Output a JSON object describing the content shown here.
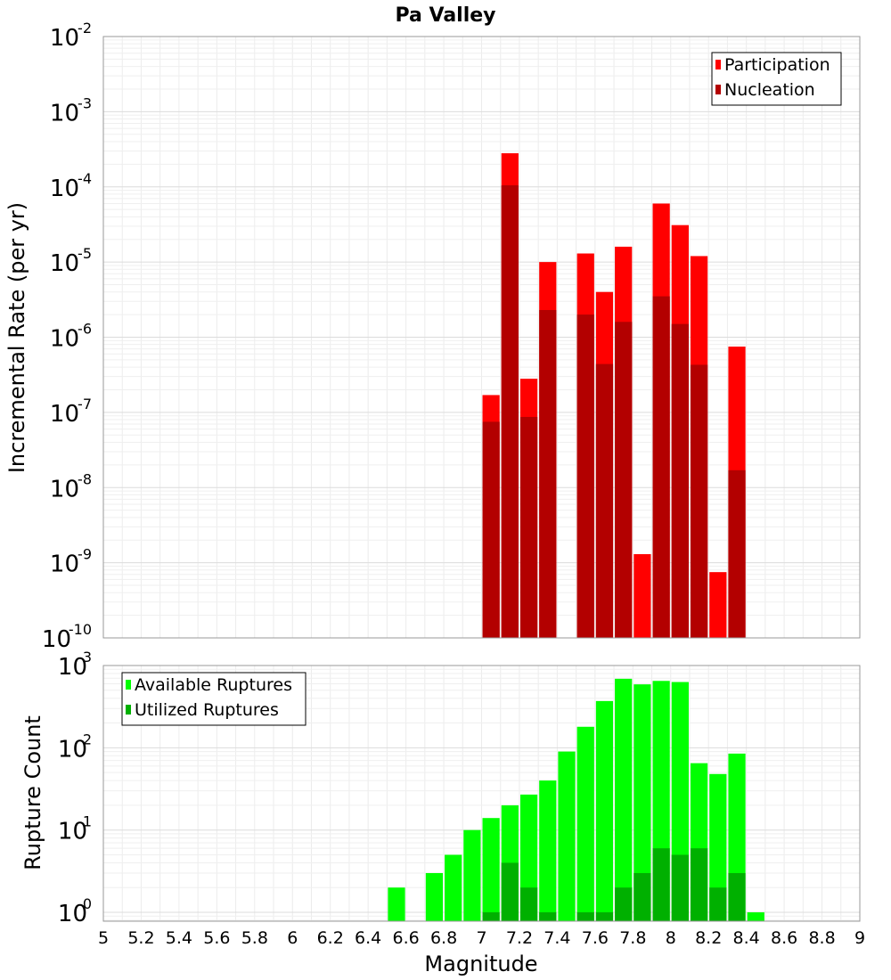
{
  "title": "Pa Valley",
  "xlabel": "Magnitude",
  "x_ticks": [
    "5",
    "5.2",
    "5.4",
    "5.6",
    "5.8",
    "6",
    "6.2",
    "6.4",
    "6.6",
    "6.8",
    "7",
    "7.2",
    "7.4",
    "7.6",
    "7.8",
    "8",
    "8.2",
    "8.4",
    "8.6",
    "8.8",
    "9"
  ],
  "chart_data": [
    {
      "type": "bar",
      "ylabel": "Incremental Rate (per yr)",
      "yscale": "log",
      "xlim": [
        5,
        9
      ],
      "ylim": [
        1e-10,
        0.01
      ],
      "y_ticks": [
        {
          "base": "10",
          "exp": "-10"
        },
        {
          "base": "10",
          "exp": "-9"
        },
        {
          "base": "10",
          "exp": "-8"
        },
        {
          "base": "10",
          "exp": "-7"
        },
        {
          "base": "10",
          "exp": "-6"
        },
        {
          "base": "10",
          "exp": "-5"
        },
        {
          "base": "10",
          "exp": "-4"
        },
        {
          "base": "10",
          "exp": "-3"
        },
        {
          "base": "10",
          "exp": "-2"
        }
      ],
      "legend_position": "top-right",
      "grid": true,
      "x": [
        7.05,
        7.15,
        7.25,
        7.35,
        7.55,
        7.65,
        7.75,
        7.85,
        7.95,
        8.05,
        8.15,
        8.25,
        8.35
      ],
      "series": [
        {
          "name": "Participation",
          "color": "#ff0000",
          "values": [
            1.7e-07,
            0.00028,
            2.8e-07,
            1e-05,
            1.3e-05,
            4e-06,
            1.6e-05,
            1.3e-09,
            6e-05,
            3.1e-05,
            1.2e-05,
            7.5e-10,
            7.5e-07
          ]
        },
        {
          "name": "Nucleation",
          "color": "#b30000",
          "values": [
            7.5e-08,
            0.000105,
            8.7e-08,
            2.3e-06,
            2e-06,
            4.4e-07,
            1.6e-06,
            null,
            3.5e-06,
            1.5e-06,
            4.3e-07,
            null,
            1.7e-08
          ]
        }
      ]
    },
    {
      "type": "bar",
      "ylabel": "Rupture Count",
      "yscale": "log",
      "xlim": [
        5,
        9
      ],
      "ylim": [
        0.78,
        1000
      ],
      "y_ticks": [
        {
          "base": "10",
          "exp": "0"
        },
        {
          "base": "10",
          "exp": "1"
        },
        {
          "base": "10",
          "exp": "2"
        },
        {
          "base": "10",
          "exp": "3"
        }
      ],
      "legend_position": "top-left",
      "grid": true,
      "x": [
        6.55,
        6.75,
        6.85,
        6.95,
        7.05,
        7.15,
        7.25,
        7.35,
        7.45,
        7.55,
        7.65,
        7.75,
        7.85,
        7.95,
        8.05,
        8.15,
        8.25,
        8.35,
        8.45
      ],
      "series": [
        {
          "name": "Available Ruptures",
          "color": "#00ff00",
          "values": [
            2,
            3,
            5,
            10,
            14,
            20,
            27,
            40,
            90,
            180,
            370,
            690,
            590,
            650,
            630,
            65,
            48,
            85,
            1
          ]
        },
        {
          "name": "Utilized Ruptures",
          "color": "#00b000",
          "values": [
            null,
            null,
            null,
            null,
            1,
            4,
            2,
            1,
            null,
            1,
            1,
            2,
            3,
            6,
            5,
            6,
            2,
            3,
            null
          ]
        }
      ]
    }
  ]
}
